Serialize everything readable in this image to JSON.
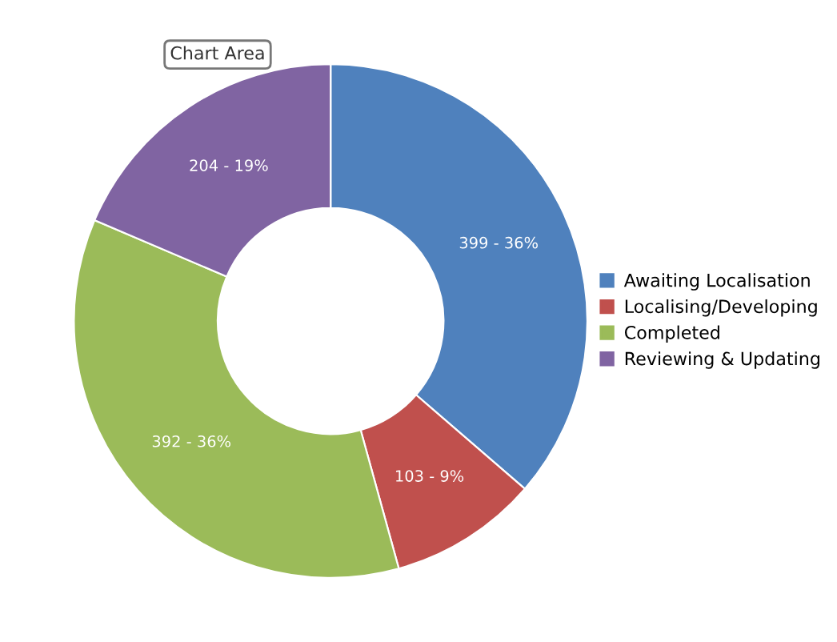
{
  "chart_data": {
    "type": "donut",
    "categories": [
      "Awaiting Localisation",
      "Localising/Developing",
      "Completed",
      "Reviewing & Updating"
    ],
    "values": [
      399,
      103,
      392,
      204
    ],
    "colors": [
      "#4f81bd",
      "#c0504d",
      "#9bbb59",
      "#8064a2"
    ],
    "value_labels": [
      "399 - 36%",
      "103 - 9%",
      "392 - 36%",
      "204 - 19%"
    ],
    "legend": "right",
    "annotations": [
      "Chart Area"
    ]
  }
}
